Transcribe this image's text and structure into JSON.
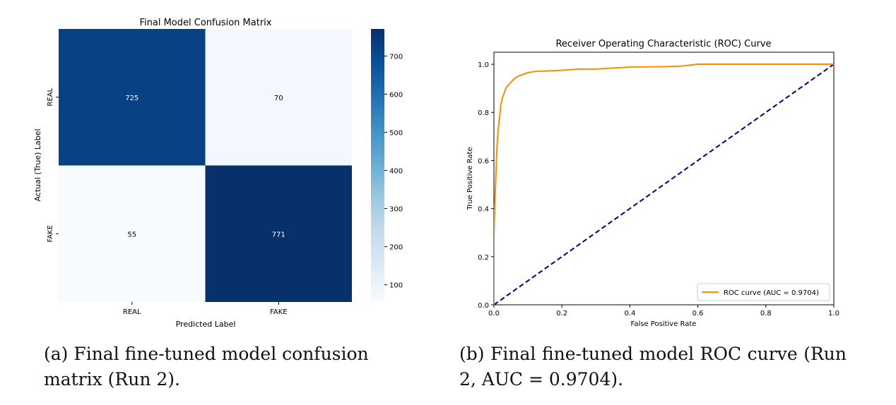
{
  "chart_data": [
    {
      "type": "heatmap",
      "title": "Final Model Confusion Matrix",
      "xlabel": "Predicted Label",
      "ylabel": "Actual (True) Label",
      "x_categories": [
        "REAL",
        "FAKE"
      ],
      "y_categories": [
        "REAL",
        "FAKE"
      ],
      "values": [
        [
          725,
          70
        ],
        [
          55,
          771
        ]
      ],
      "colormap": "Blues",
      "colorbar": {
        "range": [
          55,
          771
        ],
        "ticks": [
          100,
          200,
          300,
          400,
          500,
          600,
          700
        ]
      },
      "colors": {
        "low": "#f7fbff",
        "high": "#08306b"
      }
    },
    {
      "type": "line",
      "title": "Receiver Operating Characteristic (ROC) Curve",
      "xlabel": "False Positive Rate",
      "ylabel": "True Positive Rate",
      "xlim": [
        0.0,
        1.0
      ],
      "ylim": [
        0.0,
        1.05
      ],
      "xticks": [
        "0.0",
        "0.2",
        "0.4",
        "0.6",
        "0.8",
        "1.0"
      ],
      "yticks": [
        "0.0",
        "0.2",
        "0.4",
        "0.6",
        "0.8",
        "1.0"
      ],
      "legend_position": "lower-right",
      "series": [
        {
          "name": "ROC curve (AUC = 0.9704)",
          "color": "#ff8c00",
          "style": "solid",
          "x": [
            0.0,
            0.0,
            0.002,
            0.004,
            0.006,
            0.008,
            0.01,
            0.012,
            0.015,
            0.018,
            0.02,
            0.025,
            0.03,
            0.035,
            0.04,
            0.05,
            0.06,
            0.07,
            0.08,
            0.1,
            0.12,
            0.15,
            0.2,
            0.25,
            0.3,
            0.4,
            0.5,
            0.55,
            0.6,
            0.7,
            0.8,
            0.9,
            1.0
          ],
          "y": [
            0.0,
            0.28,
            0.4,
            0.47,
            0.55,
            0.62,
            0.68,
            0.72,
            0.76,
            0.8,
            0.83,
            0.86,
            0.88,
            0.9,
            0.91,
            0.925,
            0.94,
            0.95,
            0.955,
            0.965,
            0.97,
            0.972,
            0.975,
            0.98,
            0.98,
            0.988,
            0.99,
            0.992,
            1.0,
            1.0,
            1.0,
            1.0,
            1.0
          ]
        },
        {
          "color": "#000080",
          "style": "dashed",
          "x": [
            0.0,
            1.0
          ],
          "y": [
            0.0,
            1.0
          ]
        }
      ]
    }
  ],
  "captions": {
    "a": "(a) Final fine-tuned model confusion matrix (Run 2).",
    "b": "(b) Final fine-tuned model ROC curve (Run 2, AUC = 0.9704)."
  }
}
